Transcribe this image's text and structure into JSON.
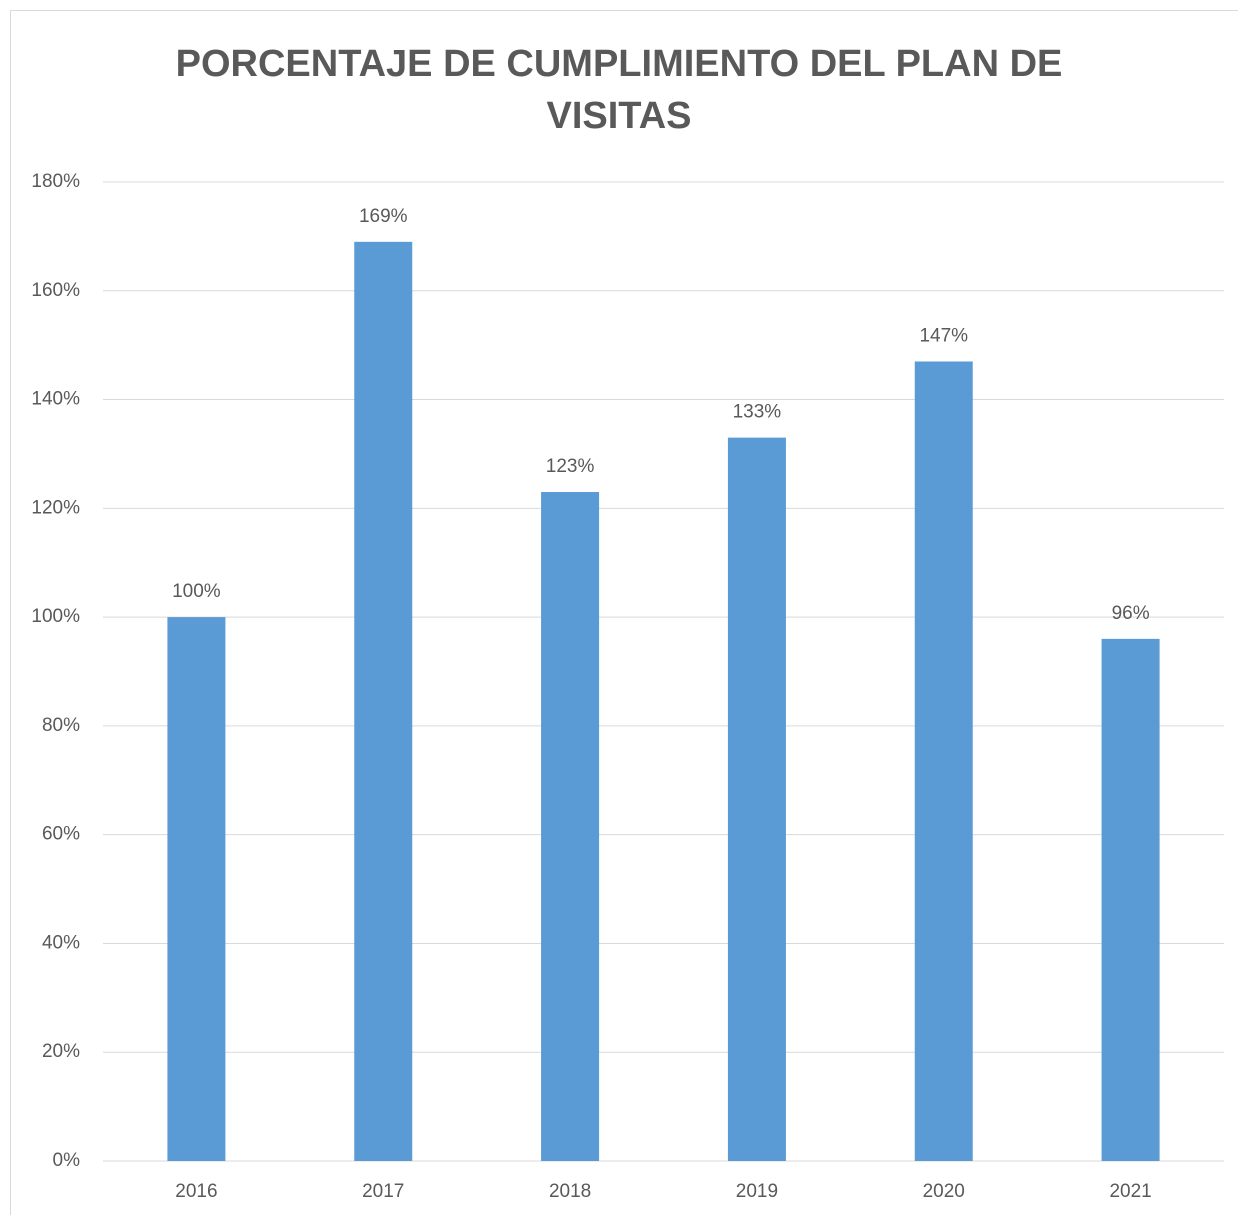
{
  "chart_data": {
    "type": "bar",
    "title": "PORCENTAJE DE CUMPLIMIENTO DEL PLAN DE VISITAS",
    "categories": [
      "2016",
      "2017",
      "2018",
      "2019",
      "2020",
      "2021"
    ],
    "values": [
      100,
      169,
      123,
      133,
      147,
      96
    ],
    "value_labels": [
      "100%",
      "169%",
      "123%",
      "133%",
      "147%",
      "96%"
    ],
    "color": "#5b9bd5",
    "ylim": [
      0,
      180
    ],
    "yticks": [
      {
        "value": 0,
        "label": "0%"
      },
      {
        "value": 20,
        "label": "20%"
      },
      {
        "value": 40,
        "label": "40%"
      },
      {
        "value": 60,
        "label": "60%"
      },
      {
        "value": 80,
        "label": "80%"
      },
      {
        "value": 100,
        "label": "100%"
      },
      {
        "value": 120,
        "label": "120%"
      },
      {
        "value": 140,
        "label": "140%"
      },
      {
        "value": 160,
        "label": "160%"
      },
      {
        "value": 180,
        "label": "180%"
      }
    ],
    "grid": true
  }
}
